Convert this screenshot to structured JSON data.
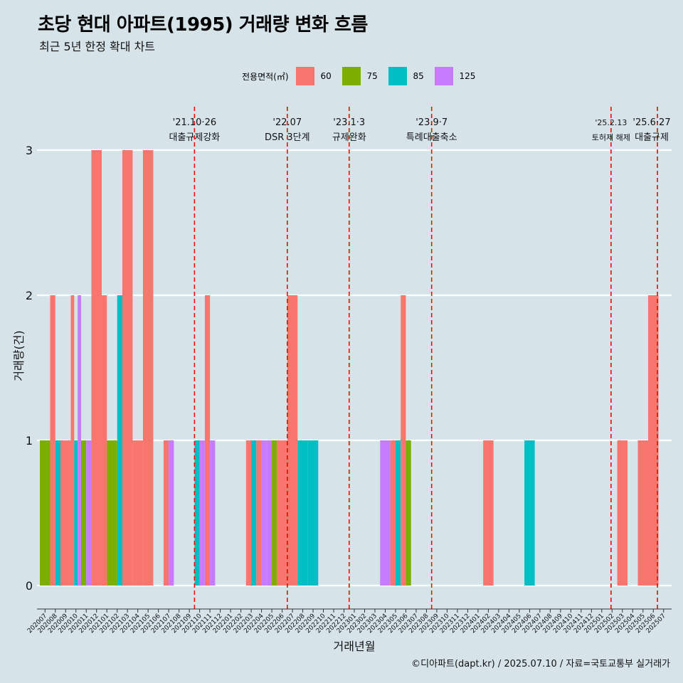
{
  "header": {
    "title": "초당 현대 아파트(1995) 거래량 변화 흐름",
    "subtitle": "최근 5년 한정 확대 차트"
  },
  "legend": {
    "title": "전용면적(㎡)",
    "items": [
      {
        "label": "60",
        "color": "#F8766D"
      },
      {
        "label": "75",
        "color": "#7CAE00"
      },
      {
        "label": "85",
        "color": "#00BFC4"
      },
      {
        "label": "125",
        "color": "#C77CFF"
      }
    ]
  },
  "caption": "©디아파트(dapt.kr) / 2025.07.10 / 자료=국토교통부 실거래가",
  "chart_data": {
    "type": "bar",
    "xlabel": "거래년월",
    "ylabel": "거래량(건)",
    "ylim": [
      0,
      3
    ],
    "yticks": [
      0,
      1,
      2,
      3
    ],
    "grid": true,
    "legend_position": "top",
    "categories": [
      "202007",
      "202008",
      "202009",
      "202010",
      "202011",
      "202012",
      "202101",
      "202102",
      "202103",
      "202104",
      "202105",
      "202106",
      "202107",
      "202108",
      "202109",
      "202110",
      "202111",
      "202112",
      "202201",
      "202202",
      "202203",
      "202204",
      "202205",
      "202206",
      "202207",
      "202208",
      "202209",
      "202210",
      "202211",
      "202212",
      "202301",
      "202302",
      "202303",
      "202304",
      "202305",
      "202306",
      "202307",
      "202308",
      "202309",
      "202310",
      "202311",
      "202312",
      "202401",
      "202402",
      "202403",
      "202404",
      "202405",
      "202406",
      "202407",
      "202408",
      "202409",
      "202410",
      "202411",
      "202412",
      "202501",
      "202502",
      "202503",
      "202504",
      "202505",
      "202506",
      "202507"
    ],
    "bars": [
      {
        "month": "202007",
        "segments": [
          {
            "area": "75",
            "value": 1
          }
        ]
      },
      {
        "month": "202008",
        "segments": [
          {
            "area": "60",
            "value": 2
          },
          {
            "area": "85",
            "value": 1
          }
        ]
      },
      {
        "month": "202009",
        "segments": [
          {
            "area": "60",
            "value": 1
          }
        ]
      },
      {
        "month": "202010",
        "segments": [
          {
            "area": "60",
            "value": 2
          },
          {
            "area": "85",
            "value": 1
          },
          {
            "area": "125",
            "value": 2
          }
        ]
      },
      {
        "month": "202011",
        "segments": [
          {
            "area": "75",
            "value": 1
          },
          {
            "area": "125",
            "value": 1
          }
        ]
      },
      {
        "month": "202012",
        "segments": [
          {
            "area": "60",
            "value": 3
          }
        ]
      },
      {
        "month": "202101",
        "segments": [
          {
            "area": "60",
            "value": 2
          },
          {
            "area": "75",
            "value": 1
          }
        ]
      },
      {
        "month": "202102",
        "segments": [
          {
            "area": "75",
            "value": 1
          },
          {
            "area": "85",
            "value": 2
          }
        ]
      },
      {
        "month": "202103",
        "segments": [
          {
            "area": "60",
            "value": 3
          }
        ]
      },
      {
        "month": "202104",
        "segments": [
          {
            "area": "60",
            "value": 1
          }
        ]
      },
      {
        "month": "202105",
        "segments": [
          {
            "area": "60",
            "value": 3
          }
        ]
      },
      {
        "month": "202107",
        "segments": [
          {
            "area": "60",
            "value": 1
          },
          {
            "area": "125",
            "value": 1
          }
        ]
      },
      {
        "month": "202110",
        "segments": [
          {
            "area": "85",
            "value": 1
          },
          {
            "area": "125",
            "value": 1
          }
        ]
      },
      {
        "month": "202111",
        "segments": [
          {
            "area": "60",
            "value": 2
          },
          {
            "area": "125",
            "value": 1
          }
        ]
      },
      {
        "month": "202203",
        "segments": [
          {
            "area": "60",
            "value": 1
          },
          {
            "area": "85",
            "value": 1
          }
        ]
      },
      {
        "month": "202204",
        "segments": [
          {
            "area": "60",
            "value": 1
          },
          {
            "area": "125",
            "value": 1
          }
        ]
      },
      {
        "month": "202205",
        "segments": [
          {
            "area": "125",
            "value": 1
          },
          {
            "area": "75",
            "value": 1
          }
        ]
      },
      {
        "month": "202206",
        "segments": [
          {
            "area": "60",
            "value": 1
          }
        ]
      },
      {
        "month": "202207",
        "segments": [
          {
            "area": "60",
            "value": 2
          }
        ]
      },
      {
        "month": "202208",
        "segments": [
          {
            "area": "85",
            "value": 1
          }
        ]
      },
      {
        "month": "202209",
        "segments": [
          {
            "area": "85",
            "value": 1
          }
        ]
      },
      {
        "month": "202304",
        "segments": [
          {
            "area": "125",
            "value": 1
          }
        ]
      },
      {
        "month": "202305",
        "segments": [
          {
            "area": "60",
            "value": 1
          },
          {
            "area": "85",
            "value": 1
          }
        ]
      },
      {
        "month": "202306",
        "segments": [
          {
            "area": "60",
            "value": 2
          },
          {
            "area": "75",
            "value": 1
          }
        ]
      },
      {
        "month": "202402",
        "segments": [
          {
            "area": "60",
            "value": 1
          }
        ]
      },
      {
        "month": "202406",
        "segments": [
          {
            "area": "85",
            "value": 1
          }
        ]
      },
      {
        "month": "202503",
        "segments": [
          {
            "area": "60",
            "value": 1
          }
        ]
      },
      {
        "month": "202505",
        "segments": [
          {
            "area": "60",
            "value": 1
          }
        ]
      },
      {
        "month": "202506",
        "segments": [
          {
            "area": "60",
            "value": 2
          }
        ]
      }
    ],
    "annotations": [
      {
        "month": "202110",
        "offset": 0.0,
        "line1": "'21.10·26",
        "line2": "대출규제강화",
        "small": false
      },
      {
        "month": "202207",
        "offset": 0.0,
        "line1": "'22.07",
        "line2": "DSR 3단계",
        "small": false
      },
      {
        "month": "202301",
        "offset": 0.0,
        "line1": "'23.1·3",
        "line2": "규제완화",
        "small": false
      },
      {
        "month": "202309",
        "offset": 0.0,
        "line1": "'23.9·7",
        "line2": "특례대출축소",
        "small": false
      },
      {
        "month": "202502",
        "offset": 0.4,
        "line1": "'25.2.13",
        "line2": "토허제 해제",
        "small": true
      },
      {
        "month": "202506",
        "offset": 0.9,
        "line1": "'25.6·27",
        "line2": "대출규제",
        "small": false
      }
    ]
  }
}
